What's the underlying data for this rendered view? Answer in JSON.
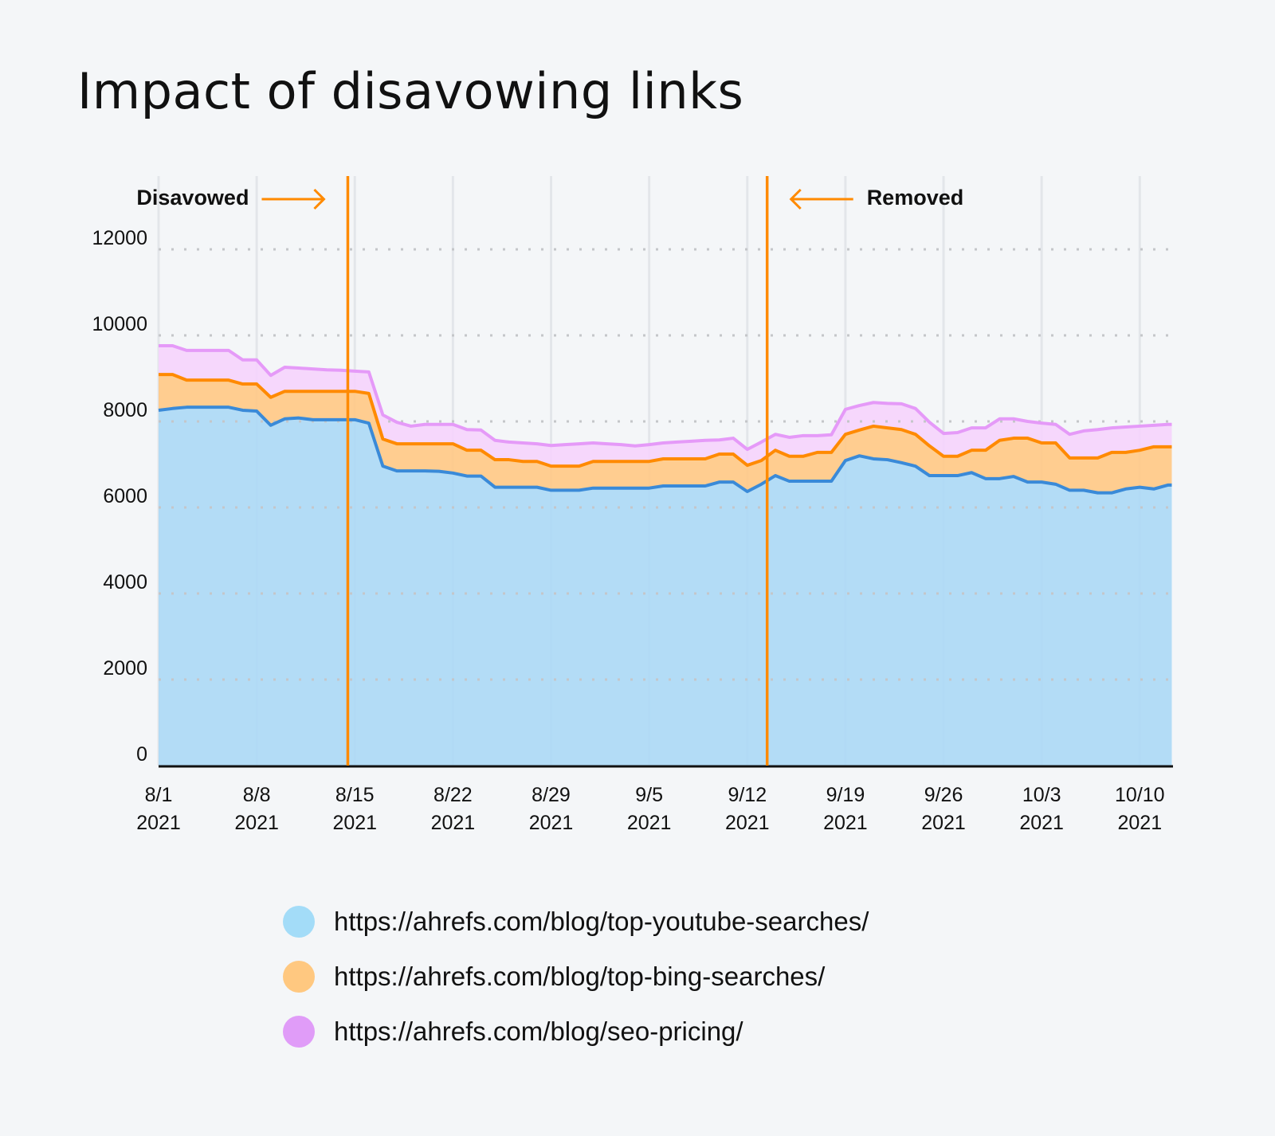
{
  "title": "Impact of disavowing links",
  "chart_data": {
    "type": "area",
    "stacked": true,
    "title": "Impact of disavowing links",
    "xlabel": "",
    "ylabel": "",
    "ylim": [
      0,
      12000
    ],
    "yticks": [
      0,
      2000,
      4000,
      6000,
      8000,
      10000,
      12000
    ],
    "xticks": [
      {
        "date": "2021-08-01",
        "label": [
          "8/1",
          "2021"
        ]
      },
      {
        "date": "2021-08-08",
        "label": [
          "8/8",
          "2021"
        ]
      },
      {
        "date": "2021-08-15",
        "label": [
          "8/15",
          "2021"
        ]
      },
      {
        "date": "2021-08-22",
        "label": [
          "8/22",
          "2021"
        ]
      },
      {
        "date": "2021-08-29",
        "label": [
          "8/29",
          "2021"
        ]
      },
      {
        "date": "2021-09-05",
        "label": [
          "9/5",
          "2021"
        ]
      },
      {
        "date": "2021-09-12",
        "label": [
          "9/12",
          "2021"
        ]
      },
      {
        "date": "2021-09-19",
        "label": [
          "9/19",
          "2021"
        ]
      },
      {
        "date": "2021-09-26",
        "label": [
          "9/26",
          "2021"
        ]
      },
      {
        "date": "2021-10-03",
        "label": [
          "10/3",
          "2021"
        ]
      },
      {
        "date": "2021-10-10",
        "label": [
          "10/10",
          "2021"
        ]
      }
    ],
    "grid": {
      "horizontal": "dotted",
      "vertical": true
    },
    "legend_position": "bottom",
    "x": [
      "2021-08-01",
      "2021-08-02",
      "2021-08-03",
      "2021-08-04",
      "2021-08-05",
      "2021-08-06",
      "2021-08-07",
      "2021-08-08",
      "2021-08-09",
      "2021-08-10",
      "2021-08-11",
      "2021-08-12",
      "2021-08-13",
      "2021-08-14",
      "2021-08-15",
      "2021-08-16",
      "2021-08-17",
      "2021-08-18",
      "2021-08-19",
      "2021-08-20",
      "2021-08-21",
      "2021-08-22",
      "2021-08-23",
      "2021-08-24",
      "2021-08-25",
      "2021-08-26",
      "2021-08-27",
      "2021-08-28",
      "2021-08-29",
      "2021-08-30",
      "2021-08-31",
      "2021-09-01",
      "2021-09-02",
      "2021-09-03",
      "2021-09-04",
      "2021-09-05",
      "2021-09-06",
      "2021-09-07",
      "2021-09-08",
      "2021-09-09",
      "2021-09-10",
      "2021-09-11",
      "2021-09-12",
      "2021-09-13",
      "2021-09-14",
      "2021-09-15",
      "2021-09-16",
      "2021-09-17",
      "2021-09-18",
      "2021-09-19",
      "2021-09-20",
      "2021-09-21",
      "2021-09-22",
      "2021-09-23",
      "2021-09-24",
      "2021-09-25",
      "2021-09-26",
      "2021-09-27",
      "2021-09-28",
      "2021-09-29",
      "2021-09-30",
      "2021-10-01",
      "2021-10-02",
      "2021-10-03",
      "2021-10-04",
      "2021-10-05",
      "2021-10-06",
      "2021-10-07",
      "2021-10-08",
      "2021-10-09",
      "2021-10-10",
      "2021-10-11",
      "2021-10-12"
    ],
    "series": [
      {
        "name": "https://ahrefs.com/blog/top-youtube-searches/",
        "fill": "#add9f5",
        "line": "#3a8ad8",
        "legend_color": "#a3dcf8",
        "values": [
          8260,
          8300,
          8330,
          8330,
          8330,
          8330,
          8260,
          8240,
          7910,
          8060,
          8080,
          8040,
          8040,
          8040,
          8040,
          7960,
          6960,
          6850,
          6850,
          6850,
          6840,
          6800,
          6730,
          6730,
          6470,
          6470,
          6470,
          6470,
          6400,
          6400,
          6400,
          6450,
          6450,
          6450,
          6450,
          6450,
          6500,
          6500,
          6500,
          6500,
          6590,
          6590,
          6370,
          6540,
          6740,
          6610,
          6610,
          6610,
          6610,
          7090,
          7200,
          7130,
          7110,
          7040,
          6960,
          6740,
          6740,
          6740,
          6810,
          6670,
          6670,
          6720,
          6590,
          6590,
          6540,
          6400,
          6400,
          6340,
          6340,
          6430,
          6470,
          6430,
          6520
        ]
      },
      {
        "name": "https://ahrefs.com/blog/top-bing-searches/",
        "fill": "#ffc987",
        "line": "#ff8a00",
        "legend_color": "#ffc880",
        "values": [
          830,
          790,
          630,
          630,
          630,
          630,
          610,
          630,
          650,
          640,
          620,
          660,
          660,
          660,
          660,
          690,
          630,
          630,
          630,
          630,
          640,
          680,
          600,
          600,
          640,
          640,
          600,
          600,
          560,
          560,
          560,
          620,
          620,
          620,
          620,
          620,
          630,
          630,
          630,
          630,
          650,
          650,
          610,
          550,
          590,
          580,
          580,
          670,
          670,
          610,
          600,
          760,
          740,
          770,
          740,
          690,
          450,
          450,
          520,
          660,
          890,
          890,
          1020,
          910,
          960,
          750,
          750,
          810,
          940,
          850,
          860,
          980,
          890
        ]
      },
      {
        "name": "https://ahrefs.com/blog/seo-pricing/",
        "fill": "#f5d4fc",
        "line": "#e59af8",
        "legend_color": "#e09cf8",
        "values": [
          670,
          670,
          690,
          690,
          690,
          690,
          560,
          560,
          510,
          560,
          540,
          520,
          500,
          490,
          470,
          500,
          560,
          500,
          410,
          450,
          450,
          450,
          480,
          470,
          450,
          410,
          430,
          410,
          480,
          500,
          520,
          430,
          410,
          390,
          360,
          390,
          370,
          390,
          410,
          430,
          330,
          370,
          370,
          430,
          370,
          440,
          480,
          390,
          410,
          580,
          570,
          550,
          570,
          600,
          600,
          550,
          530,
          550,
          520,
          520,
          500,
          450,
          390,
          460,
          430,
          550,
          630,
          660,
          570,
          590,
          560,
          500,
          520
        ]
      }
    ],
    "annotations": [
      {
        "type": "vline",
        "date": "2021-08-14 12:00",
        "color": "#ff8a00",
        "label": "Disavowed",
        "arrow": "right"
      },
      {
        "type": "vline",
        "date": "2021-09-13 10:00",
        "color": "#ff8a00",
        "label": "Removed",
        "arrow": "left"
      }
    ]
  }
}
